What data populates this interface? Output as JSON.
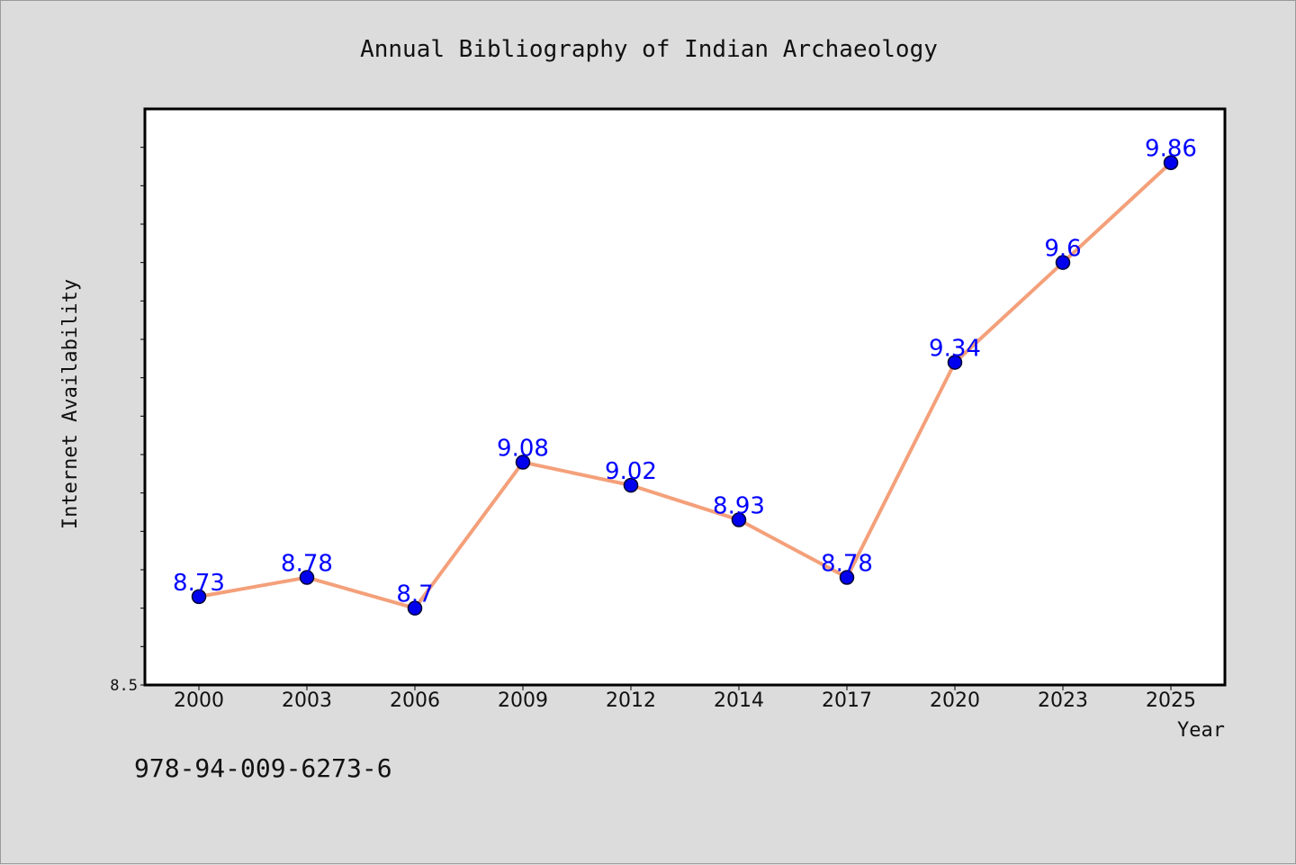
{
  "chart_data": {
    "type": "line",
    "title": "Annual Bibliography of Indian Archaeology",
    "xlabel": "Year",
    "ylabel": "Internet Availability",
    "categories": [
      "2000",
      "2003",
      "2006",
      "2009",
      "2012",
      "2014",
      "2017",
      "2020",
      "2023",
      "2025"
    ],
    "series": [
      {
        "values": [
          8.73,
          8.78,
          8.7,
          9.08,
          9.02,
          8.93,
          8.78,
          9.34,
          9.6,
          9.86
        ],
        "labels": [
          "8.73",
          "8.78",
          "8.7",
          "9.08",
          "9.02",
          "8.93",
          "8.78",
          "9.34",
          "9.6",
          "9.86"
        ]
      }
    ],
    "ylim": [
      8.5,
      10.0
    ],
    "y_tick_labels": [
      "8.5"
    ],
    "grid": false,
    "colors": {
      "line": "#f4a07a",
      "marker": "#0000ee",
      "marker_edge": "#000033",
      "data_label": "#0000ff"
    }
  },
  "footer": {
    "text": "978-94-009-6273-6"
  }
}
